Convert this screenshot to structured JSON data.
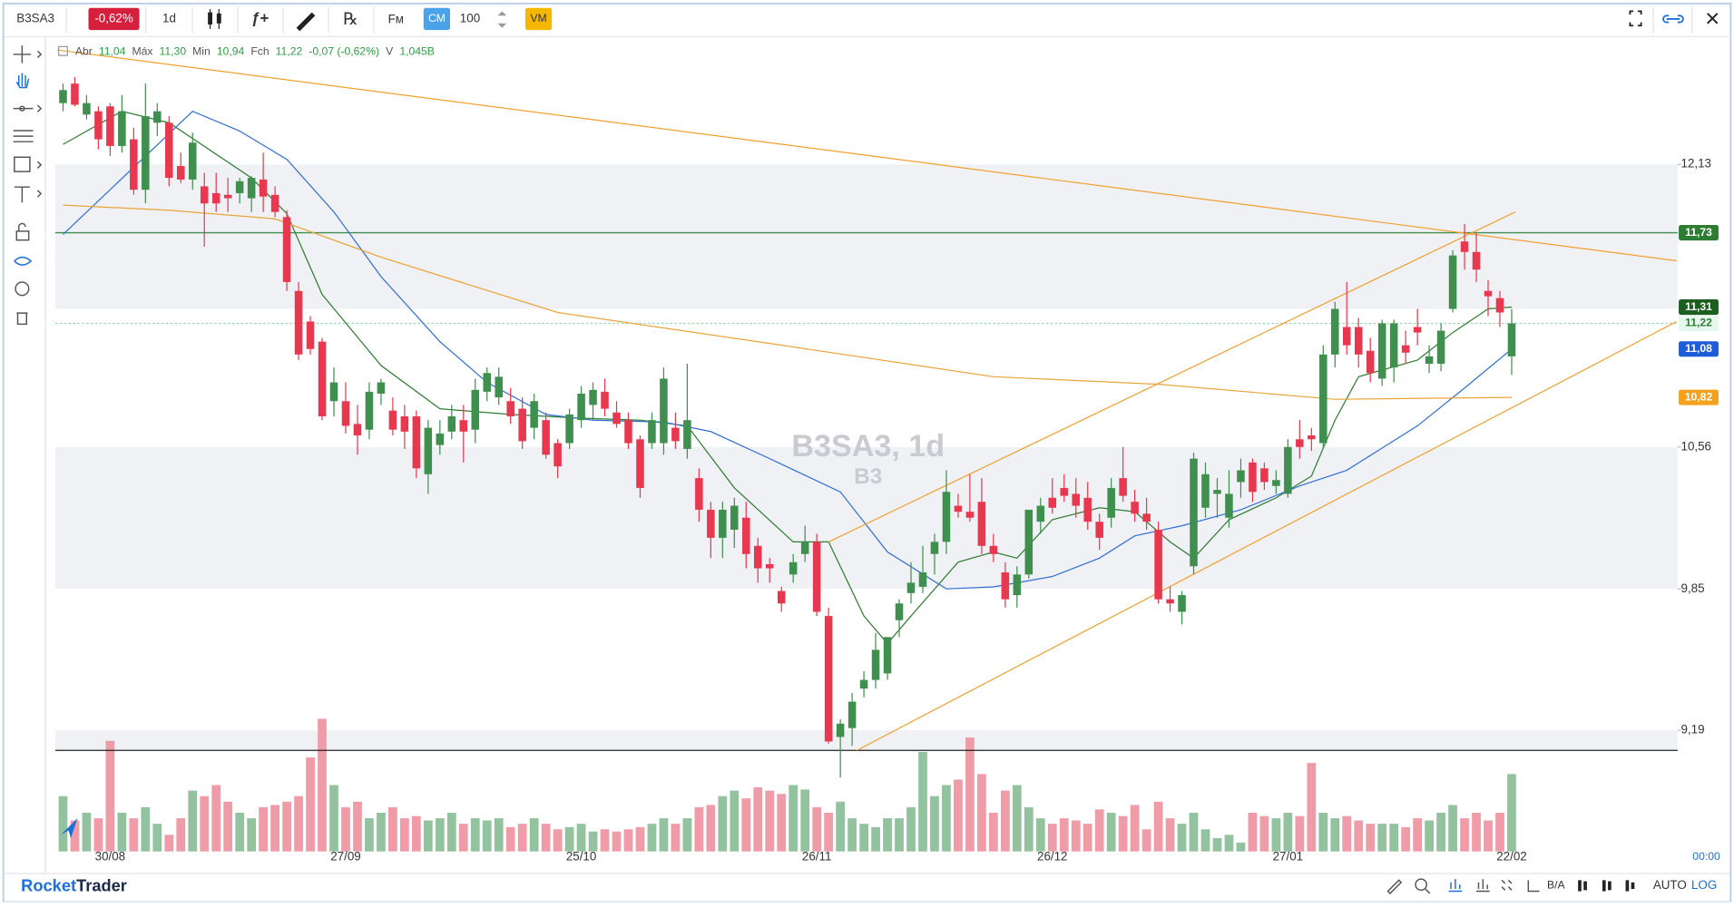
{
  "toolbar": {
    "symbol": "B3SA3",
    "change": "-0,62%",
    "interval": "1d",
    "func": "ƒ+",
    "rx": "℞",
    "fm": "Fм",
    "cm": "CM",
    "count": "100",
    "vm": "VM"
  },
  "legend": {
    "open_name": "Abr",
    "open": "11,04",
    "high_name": "Máx",
    "high": "11,30",
    "low_name": "Min",
    "low": "10,94",
    "close_name": "Fch",
    "close": "11,22",
    "change": "-0,07 (-0,62%)",
    "volume_name": "V",
    "volume": "1,045B"
  },
  "footer": {
    "brand_a": "Rocket",
    "brand_b": "Trader",
    "ba": "B/A",
    "auto": "AUTO",
    "log": "LOG",
    "time": "00:00"
  },
  "chart_data": {
    "type": "candlestick",
    "title": "B3SA3, 1d",
    "subtitle": "B3",
    "log_scale": true,
    "ylim": [
      8.66,
      12.9
    ],
    "yticks": [
      {
        "value": 12.13,
        "label": "12,13"
      },
      {
        "value": 10.56,
        "label": "10,56"
      },
      {
        "value": 9.85,
        "label": "9,85"
      },
      {
        "value": 9.19,
        "label": "9,19"
      }
    ],
    "bands": [
      [
        12.13,
        11.3
      ],
      [
        10.56,
        9.85
      ],
      [
        9.19,
        9.1
      ]
    ],
    "up_color": "#3f8f4f",
    "down_color": "#e8384f",
    "volume_up_color": "#93c29e",
    "volume_down_color": "#ef9ba8",
    "categories": [
      null,
      null,
      null,
      null,
      "30/08",
      null,
      null,
      null,
      null,
      null,
      null,
      null,
      null,
      null,
      null,
      null,
      null,
      null,
      null,
      null,
      null,
      null,
      null,
      null,
      "27/09",
      null,
      null,
      null,
      null,
      null,
      null,
      null,
      null,
      null,
      null,
      null,
      null,
      null,
      null,
      null,
      null,
      null,
      null,
      null,
      "25/10",
      null,
      null,
      null,
      null,
      null,
      null,
      null,
      null,
      null,
      null,
      null,
      null,
      null,
      null,
      null,
      null,
      null,
      null,
      null,
      "26/11",
      null,
      null,
      null,
      null,
      null,
      null,
      null,
      null,
      null,
      null,
      null,
      null,
      null,
      null,
      null,
      null,
      null,
      null,
      null,
      "26/12",
      null,
      null,
      null,
      null,
      null,
      null,
      null,
      null,
      null,
      null,
      null,
      null,
      null,
      null,
      null,
      null,
      null,
      null,
      null,
      "27/01",
      null,
      null,
      null,
      null,
      null,
      null,
      null,
      null,
      null,
      null,
      null,
      null,
      null,
      null,
      null,
      null,
      null,
      null,
      "22/02"
    ],
    "candles": [
      [
        12.5,
        12.62,
        12.45,
        12.58
      ],
      [
        12.62,
        12.66,
        12.48,
        12.49
      ],
      [
        12.43,
        12.55,
        12.4,
        12.5
      ],
      [
        12.45,
        12.48,
        12.22,
        12.28
      ],
      [
        12.48,
        12.5,
        12.18,
        12.24
      ],
      [
        12.24,
        12.55,
        12.2,
        12.45
      ],
      [
        12.28,
        12.35,
        11.95,
        11.98
      ],
      [
        11.98,
        12.62,
        11.9,
        12.42
      ],
      [
        12.38,
        12.5,
        12.3,
        12.45
      ],
      [
        12.38,
        12.42,
        12.0,
        12.05
      ],
      [
        12.12,
        12.2,
        12.02,
        12.04
      ],
      [
        12.04,
        12.32,
        11.98,
        12.26
      ],
      [
        12.0,
        12.08,
        11.65,
        11.9
      ],
      [
        11.96,
        12.08,
        11.85,
        11.9
      ],
      [
        11.95,
        12.05,
        11.85,
        11.93
      ],
      [
        11.96,
        12.05,
        11.9,
        12.03
      ],
      [
        11.93,
        12.06,
        11.85,
        12.05
      ],
      [
        12.04,
        12.2,
        11.85,
        11.94
      ],
      [
        11.95,
        12.0,
        11.82,
        11.85
      ],
      [
        11.82,
        11.86,
        11.4,
        11.45
      ],
      [
        11.4,
        11.45,
        11.02,
        11.05
      ],
      [
        11.23,
        11.26,
        11.05,
        11.08
      ],
      [
        11.12,
        11.14,
        10.7,
        10.72
      ],
      [
        10.8,
        10.98,
        10.72,
        10.9
      ],
      [
        10.8,
        10.9,
        10.63,
        10.67
      ],
      [
        10.68,
        10.78,
        10.52,
        10.62
      ],
      [
        10.65,
        10.9,
        10.6,
        10.85
      ],
      [
        10.84,
        10.92,
        10.78,
        10.9
      ],
      [
        10.75,
        10.82,
        10.62,
        10.65
      ],
      [
        10.72,
        10.78,
        10.55,
        10.64
      ],
      [
        10.72,
        10.75,
        10.4,
        10.45
      ],
      [
        10.42,
        10.7,
        10.32,
        10.66
      ],
      [
        10.57,
        10.7,
        10.52,
        10.63
      ],
      [
        10.64,
        10.78,
        10.6,
        10.72
      ],
      [
        10.7,
        10.78,
        10.48,
        10.64
      ],
      [
        10.65,
        10.92,
        10.58,
        10.86
      ],
      [
        10.85,
        10.98,
        10.8,
        10.95
      ],
      [
        10.82,
        10.98,
        10.78,
        10.93
      ],
      [
        10.8,
        10.87,
        10.68,
        10.72
      ],
      [
        10.76,
        10.82,
        10.55,
        10.59
      ],
      [
        10.66,
        10.84,
        10.6,
        10.8
      ],
      [
        10.7,
        10.74,
        10.5,
        10.52
      ],
      [
        10.58,
        10.6,
        10.4,
        10.46
      ],
      [
        10.58,
        10.76,
        10.55,
        10.73
      ],
      [
        10.7,
        10.88,
        10.66,
        10.84
      ],
      [
        10.78,
        10.9,
        10.7,
        10.86
      ],
      [
        10.85,
        10.92,
        10.72,
        10.76
      ],
      [
        10.74,
        10.8,
        10.66,
        10.68
      ],
      [
        10.7,
        10.74,
        10.55,
        10.58
      ],
      [
        10.6,
        10.62,
        10.3,
        10.35
      ],
      [
        10.58,
        10.74,
        10.55,
        10.7
      ],
      [
        10.58,
        10.98,
        10.52,
        10.92
      ],
      [
        10.66,
        10.74,
        10.55,
        10.59
      ],
      [
        10.55,
        11.0,
        10.5,
        10.7
      ],
      [
        10.4,
        10.45,
        10.18,
        10.24
      ],
      [
        10.24,
        10.28,
        10.0,
        10.1
      ],
      [
        10.1,
        10.28,
        10.0,
        10.24
      ],
      [
        10.14,
        10.3,
        10.05,
        10.26
      ],
      [
        10.2,
        10.28,
        9.95,
        10.02
      ],
      [
        10.06,
        10.1,
        9.88,
        9.95
      ],
      [
        9.97,
        10.0,
        9.88,
        9.95
      ],
      [
        9.84,
        9.86,
        9.74,
        9.78
      ],
      [
        9.92,
        10.02,
        9.88,
        9.98
      ],
      [
        10.02,
        10.16,
        9.98,
        10.08
      ],
      [
        10.08,
        10.12,
        9.72,
        9.74
      ],
      [
        9.72,
        9.76,
        9.13,
        9.14
      ],
      [
        9.16,
        9.24,
        8.98,
        9.22
      ],
      [
        9.2,
        9.36,
        9.12,
        9.32
      ],
      [
        9.38,
        9.46,
        9.34,
        9.42
      ],
      [
        9.42,
        9.64,
        9.38,
        9.56
      ],
      [
        9.45,
        9.62,
        9.42,
        9.62
      ],
      [
        9.7,
        9.8,
        9.62,
        9.78
      ],
      [
        9.83,
        9.98,
        9.78,
        9.88
      ],
      [
        9.86,
        10.06,
        9.83,
        9.93
      ],
      [
        10.02,
        10.12,
        9.92,
        10.08
      ],
      [
        10.08,
        10.44,
        10.02,
        10.33
      ],
      [
        10.26,
        10.32,
        10.2,
        10.23
      ],
      [
        10.23,
        10.42,
        10.18,
        10.2
      ],
      [
        10.28,
        10.4,
        10.02,
        10.06
      ],
      [
        10.06,
        10.12,
        9.98,
        10.02
      ],
      [
        9.93,
        9.98,
        9.76,
        9.8
      ],
      [
        9.82,
        9.96,
        9.76,
        9.92
      ],
      [
        9.92,
        10.24,
        9.9,
        10.24
      ],
      [
        10.18,
        10.3,
        10.12,
        10.26
      ],
      [
        10.3,
        10.4,
        10.22,
        10.25
      ],
      [
        10.35,
        10.42,
        10.28,
        10.31
      ],
      [
        10.32,
        10.4,
        10.2,
        10.26
      ],
      [
        10.3,
        10.38,
        10.14,
        10.18
      ],
      [
        10.18,
        10.22,
        10.04,
        10.1
      ],
      [
        10.2,
        10.4,
        10.15,
        10.35
      ],
      [
        10.4,
        10.56,
        10.28,
        10.31
      ],
      [
        10.28,
        10.34,
        10.18,
        10.22
      ],
      [
        10.22,
        10.3,
        10.14,
        10.18
      ],
      [
        10.14,
        10.18,
        9.78,
        9.8
      ],
      [
        9.8,
        9.86,
        9.74,
        9.78
      ],
      [
        9.74,
        9.84,
        9.68,
        9.82
      ],
      [
        9.96,
        10.53,
        9.92,
        10.5
      ],
      [
        10.25,
        10.48,
        10.2,
        10.42
      ],
      [
        10.32,
        10.4,
        10.2,
        10.34
      ],
      [
        10.2,
        10.44,
        10.15,
        10.32
      ],
      [
        10.38,
        10.5,
        10.3,
        10.44
      ],
      [
        10.48,
        10.5,
        10.28,
        10.33
      ],
      [
        10.45,
        10.48,
        10.34,
        10.38
      ],
      [
        10.36,
        10.44,
        10.32,
        10.39
      ],
      [
        10.32,
        10.6,
        10.3,
        10.56
      ],
      [
        10.6,
        10.7,
        10.5,
        10.56
      ],
      [
        10.62,
        10.66,
        10.54,
        10.6
      ],
      [
        10.58,
        11.1,
        10.55,
        11.05
      ],
      [
        11.05,
        11.34,
        10.98,
        11.3
      ],
      [
        11.2,
        11.45,
        11.05,
        11.1
      ],
      [
        11.2,
        11.25,
        10.98,
        11.05
      ],
      [
        11.07,
        11.14,
        10.9,
        10.95
      ],
      [
        10.92,
        11.24,
        10.88,
        11.22
      ],
      [
        10.98,
        11.24,
        10.9,
        11.22
      ],
      [
        11.1,
        11.18,
        11.0,
        11.06
      ],
      [
        11.2,
        11.3,
        11.1,
        11.17
      ],
      [
        11.0,
        11.1,
        10.95,
        11.04
      ],
      [
        11.0,
        11.22,
        10.96,
        11.18
      ],
      [
        11.3,
        11.63,
        11.28,
        11.6
      ],
      [
        11.68,
        11.78,
        11.52,
        11.62
      ],
      [
        11.62,
        11.73,
        11.45,
        11.52
      ],
      [
        11.4,
        11.46,
        11.26,
        11.37
      ],
      [
        11.36,
        11.4,
        11.2,
        11.28
      ],
      [
        11.04,
        11.3,
        10.94,
        11.22
      ]
    ],
    "vlim": [
      0,
      125
    ],
    "volume": [
      50,
      28,
      35,
      30,
      100,
      35,
      30,
      40,
      25,
      15,
      30,
      55,
      50,
      60,
      45,
      35,
      30,
      40,
      42,
      45,
      50,
      85,
      120,
      60,
      40,
      45,
      30,
      35,
      40,
      30,
      32,
      28,
      30,
      35,
      25,
      30,
      28,
      30,
      22,
      25,
      30,
      25,
      20,
      22,
      25,
      18,
      20,
      18,
      20,
      22,
      25,
      30,
      25,
      30,
      40,
      42,
      50,
      55,
      48,
      58,
      55,
      52,
      60,
      56,
      40,
      35,
      45,
      30,
      25,
      22,
      30,
      30,
      40,
      90,
      50,
      60,
      65,
      103,
      70,
      35,
      55,
      60,
      40,
      30,
      25,
      30,
      28,
      25,
      38,
      35,
      32,
      42,
      20,
      45,
      30,
      25,
      35,
      20,
      12,
      15,
      8,
      35,
      32,
      30,
      35,
      32,
      80,
      35,
      30,
      32,
      28,
      25,
      25,
      25,
      22,
      30,
      28,
      35,
      42,
      30,
      35,
      28,
      35,
      70
    ],
    "indicators": [
      {
        "color": "#2e7d32",
        "points": [
          [
            0,
            12.25
          ],
          [
            5,
            12.45
          ],
          [
            9,
            12.38
          ],
          [
            16,
            12.05
          ],
          [
            19,
            11.84
          ],
          [
            22,
            11.38
          ],
          [
            27,
            10.99
          ],
          [
            32,
            10.76
          ],
          [
            38,
            10.73
          ],
          [
            44,
            10.71
          ],
          [
            49,
            10.7
          ],
          [
            53,
            10.67
          ],
          [
            57,
            10.35
          ],
          [
            62,
            10.08
          ],
          [
            65,
            10.08
          ],
          [
            68,
            9.72
          ],
          [
            70,
            9.59
          ],
          [
            72,
            9.72
          ],
          [
            76,
            9.98
          ],
          [
            79,
            10.03
          ],
          [
            81,
            10.0
          ],
          [
            84,
            10.19
          ],
          [
            88,
            10.25
          ],
          [
            91,
            10.23
          ],
          [
            94,
            10.08
          ],
          [
            96,
            10.0
          ],
          [
            99,
            10.19
          ],
          [
            103,
            10.3
          ],
          [
            106,
            10.41
          ],
          [
            108,
            10.7
          ],
          [
            110,
            10.93
          ],
          [
            115,
            11.02
          ],
          [
            118,
            11.17
          ],
          [
            121,
            11.3
          ],
          [
            123,
            11.31
          ]
        ]
      },
      {
        "color": "#2f6fd6",
        "points": [
          [
            0,
            11.72
          ],
          [
            11,
            12.45
          ],
          [
            15,
            12.33
          ],
          [
            19,
            12.16
          ],
          [
            23,
            11.85
          ],
          [
            27,
            11.48
          ],
          [
            32,
            11.12
          ],
          [
            36,
            10.9
          ],
          [
            41,
            10.73
          ],
          [
            45,
            10.7
          ],
          [
            51,
            10.69
          ],
          [
            55,
            10.64
          ],
          [
            60,
            10.5
          ],
          [
            66,
            10.33
          ],
          [
            70,
            10.03
          ],
          [
            75,
            9.85
          ],
          [
            79,
            9.86
          ],
          [
            84,
            9.91
          ],
          [
            88,
            10.0
          ],
          [
            91,
            10.11
          ],
          [
            95,
            10.16
          ],
          [
            100,
            10.24
          ],
          [
            105,
            10.36
          ],
          [
            109,
            10.44
          ],
          [
            115,
            10.67
          ],
          [
            119,
            10.87
          ],
          [
            123,
            11.08
          ]
        ]
      },
      {
        "color": "#e9a43a",
        "points": [
          [
            0,
            11.89
          ],
          [
            9,
            11.86
          ],
          [
            18,
            11.81
          ],
          [
            27,
            11.59
          ],
          [
            42,
            11.28
          ],
          [
            60,
            11.11
          ],
          [
            79,
            10.93
          ],
          [
            93,
            10.89
          ],
          [
            108,
            10.81
          ],
          [
            123,
            10.82
          ]
        ]
      },
      {
        "color": "#f0a030",
        "points": [
          [
            -0.5,
            12.83
          ],
          [
            137,
            11.57
          ]
        ]
      },
      {
        "color": "#f0a030",
        "points": [
          [
            65,
            10.08
          ],
          [
            123.3,
            11.85
          ]
        ]
      },
      {
        "color": "#f0a030",
        "points": [
          [
            67.4,
            9.1
          ],
          [
            137,
            11.23
          ]
        ]
      }
    ],
    "horizontal_lines": [
      {
        "value": 11.73,
        "color": "#3f8f4f",
        "dash": false
      },
      {
        "value": 11.22,
        "color": "#8fd9b0",
        "dash": true
      },
      {
        "value": 9.1,
        "color": "#222222",
        "dash": false
      }
    ],
    "price_markers": [
      {
        "value": 11.73,
        "label": "11,73",
        "color": "#2e7d32",
        "text_color": "#ffffff"
      },
      {
        "value": 11.31,
        "label": "11,31",
        "color": "#1b5e20",
        "text_color": "#ffffff"
      },
      {
        "value": 11.22,
        "label": "11,22",
        "color": "#e6f7ee",
        "text_color": "#2e7d32"
      },
      {
        "value": 11.08,
        "label": "11,08",
        "color": "#1e5bd8",
        "text_color": "#ffffff"
      },
      {
        "value": 10.82,
        "label": "10,82",
        "color": "#f4a21e",
        "text_color": "#ffffff"
      }
    ]
  }
}
